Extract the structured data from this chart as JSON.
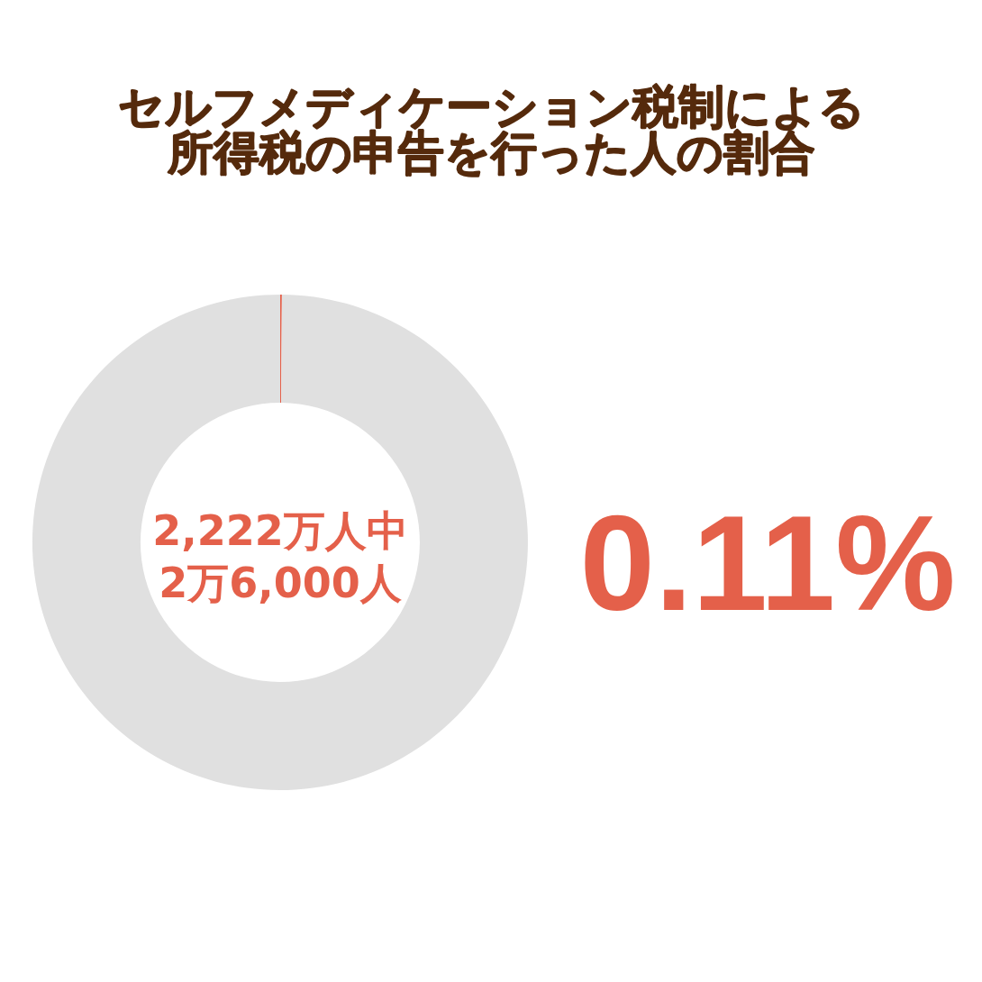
{
  "chart_data": {
    "type": "donut",
    "title": "セルフメディケーション税制による所得税の申告を行った人の割合",
    "categories": [
      null,
      null
    ],
    "values": [
      0.11,
      99.89
    ],
    "colors": [
      "#e4604a",
      "#e0e0e0"
    ],
    "annotations": [
      "2,222万人中\n2万6,000人",
      "0.11%"
    ]
  }
}
